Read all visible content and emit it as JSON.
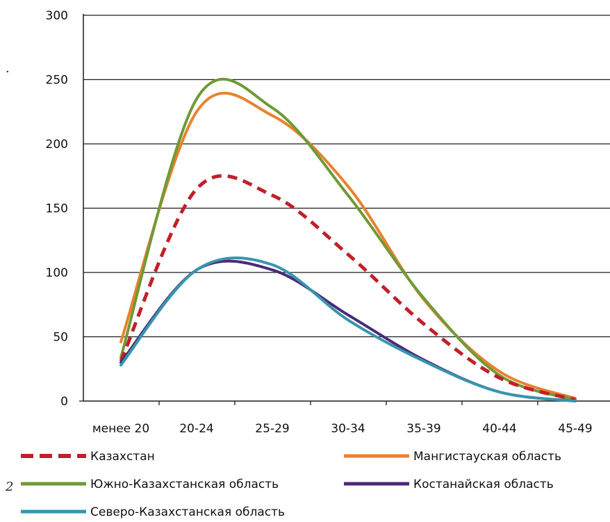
{
  "chart_data": {
    "type": "line",
    "categories": [
      "менее 20",
      "20-24",
      "25-29",
      "30-34",
      "35-39",
      "40-44",
      "45-49"
    ],
    "ylim": [
      0,
      300
    ],
    "yticks": [
      0,
      50,
      100,
      150,
      200,
      250,
      300
    ],
    "grid": true,
    "legend_position": "bottom",
    "series": [
      {
        "name": "Казахстан",
        "color": "#c0202a",
        "dashed": true,
        "values": [
          31,
          165,
          160,
          114,
          60,
          18,
          1
        ]
      },
      {
        "name": "Мангистауская область",
        "color": "#e8822e",
        "dashed": false,
        "values": [
          46,
          225,
          222,
          167,
          79,
          23,
          2
        ]
      },
      {
        "name": "Южно-Казахстанская область",
        "color": "#6f9a36",
        "dashed": false,
        "values": [
          34,
          235,
          228,
          160,
          80,
          20,
          1
        ]
      },
      {
        "name": "Костанайская область",
        "color": "#4a2a78",
        "dashed": false,
        "values": [
          30,
          102,
          102,
          67,
          32,
          7,
          0
        ]
      },
      {
        "name": "Северо-Казахстанская область",
        "color": "#3795ad",
        "dashed": false,
        "values": [
          28,
          102,
          106,
          63,
          31,
          7,
          0
        ]
      }
    ]
  },
  "stray_marks": {
    "dot": ".",
    "number": "2"
  }
}
